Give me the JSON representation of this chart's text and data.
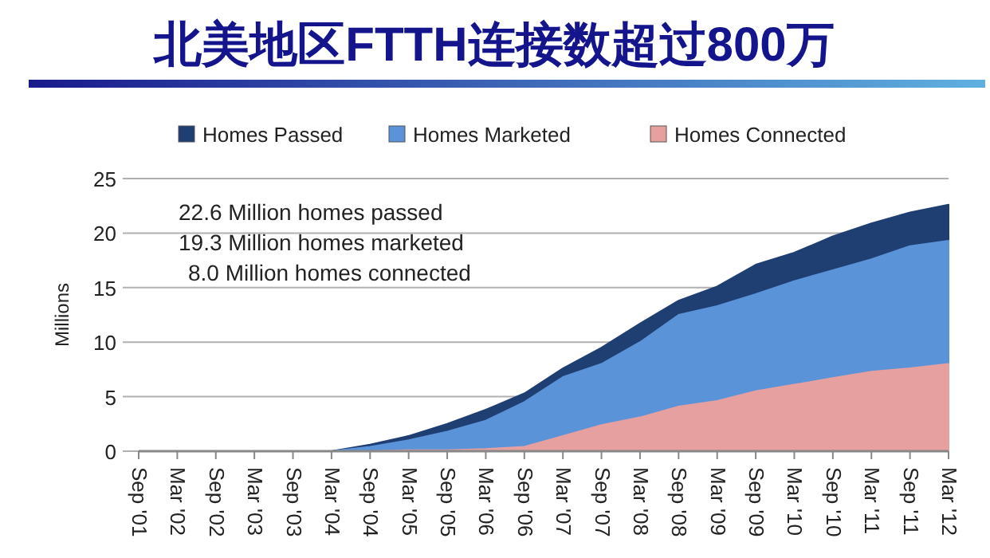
{
  "chart_data": {
    "type": "area",
    "title": "北美地区FTTH连接数超过800万",
    "ylabel": "Millions",
    "categories": [
      "Sep '01",
      "Mar '02",
      "Sep '02",
      "Mar '03",
      "Sep '03",
      "Mar '04",
      "Sep '04",
      "Mar '05",
      "Sep '05",
      "Mar '06",
      "Sep '06",
      "Mar '07",
      "Sep '07",
      "Mar '08",
      "Sep '08",
      "Mar '09",
      "Sep '09",
      "Mar '10",
      "Sep '10",
      "Mar '11",
      "Sep '11",
      "Mar '12"
    ],
    "series": [
      {
        "name": "Homes Passed",
        "color": "#1f3f73",
        "values": [
          0,
          0,
          0,
          0,
          0,
          0,
          0.6,
          1.4,
          2.5,
          3.8,
          5.3,
          7.6,
          9.5,
          11.7,
          13.8,
          15.1,
          17.1,
          18.2,
          19.7,
          20.9,
          21.9,
          22.6
        ]
      },
      {
        "name": "Homes Marketed",
        "color": "#5b93d9",
        "values": [
          0,
          0,
          0,
          0,
          0,
          0,
          0.4,
          1.0,
          1.8,
          2.8,
          4.5,
          6.8,
          8.0,
          10.0,
          12.5,
          13.3,
          14.4,
          15.6,
          16.6,
          17.6,
          18.8,
          19.3
        ]
      },
      {
        "name": "Homes Connected",
        "color": "#e6a0a0",
        "values": [
          0,
          0,
          0,
          0,
          0,
          0,
          0,
          0.1,
          0.1,
          0.2,
          0.4,
          1.4,
          2.4,
          3.1,
          4.1,
          4.6,
          5.5,
          6.1,
          6.7,
          7.3,
          7.6,
          8.0
        ]
      }
    ],
    "ylim": [
      0,
      25
    ],
    "yticks": [
      0,
      5,
      10,
      15,
      20,
      25
    ],
    "grid": "y",
    "legend": "top",
    "annotations": [
      "22.6 Million homes passed",
      "19.3 Million homes marketed",
      "8.0 Million homes connected"
    ]
  }
}
